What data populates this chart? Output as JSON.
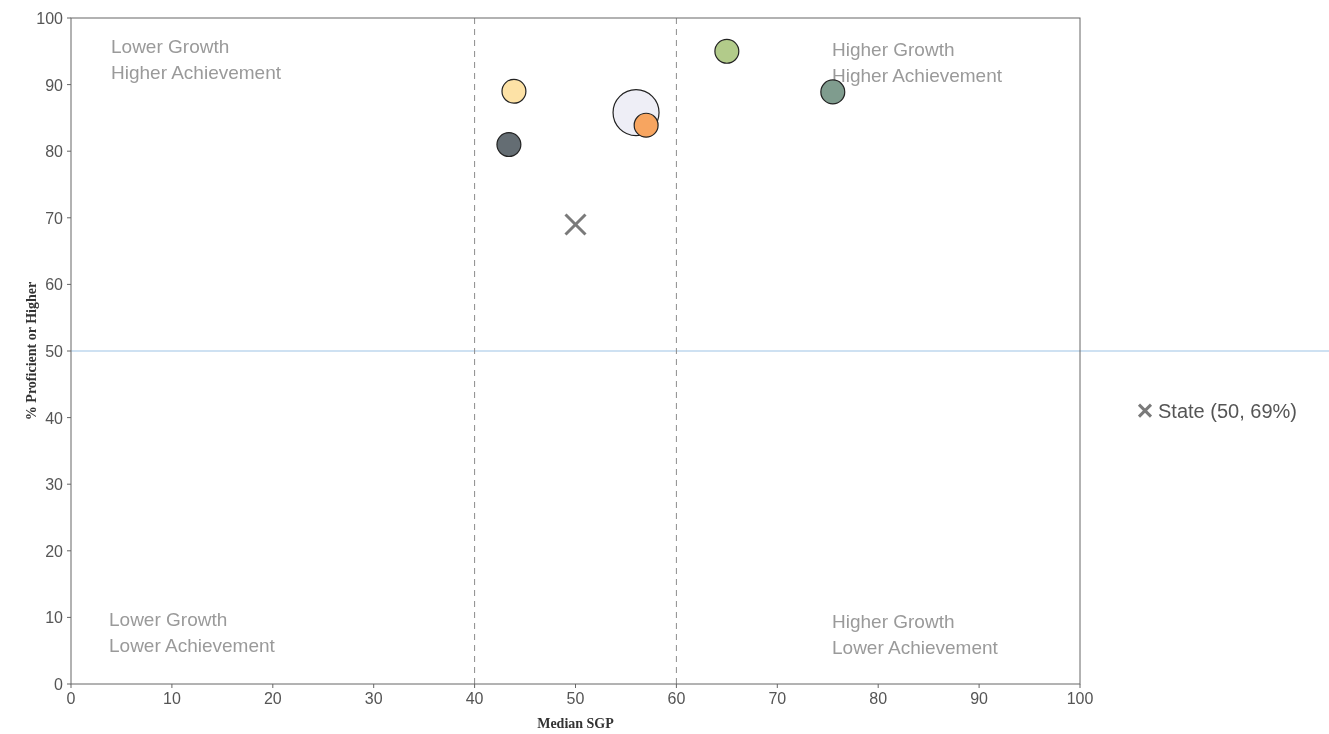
{
  "chart_data": {
    "type": "bubble",
    "xlabel": "Median SGP",
    "ylabel": "% Proficient or Higher",
    "xlim": [
      0,
      100
    ],
    "xticks": [
      0,
      10,
      20,
      30,
      40,
      50,
      60,
      70,
      80,
      90,
      100
    ],
    "ylim": [
      0,
      100
    ],
    "yticks": [
      0,
      10,
      20,
      30,
      40,
      50,
      60,
      70,
      80,
      90,
      100
    ],
    "grid": false,
    "legend": "right",
    "series": [
      {
        "x": [
          43.9,
          43.4,
          56.0,
          57.0,
          65.0,
          75.5
        ],
        "values": [
          89.0,
          81.0,
          85.8,
          83.9,
          95.0,
          88.9
        ],
        "sizes": [
          0.27,
          0.27,
          1,
          0.27,
          0.27,
          0.27
        ],
        "colors": [
          "#fde2a6",
          "#646d73",
          "#eeeef6",
          "#f7a560",
          "#b2cb8a",
          "#7f9c8e"
        ]
      },
      {
        "type": "scatter",
        "marker": "cross",
        "name": "State (50, 69%)",
        "color": "#7a7a7a",
        "x": [
          50
        ],
        "values": [
          69
        ]
      }
    ],
    "ref_lines": [
      {
        "axis": "y",
        "value": 50,
        "color": "#9dc3e6",
        "line_style": "solid"
      },
      {
        "axis": "x",
        "value": 40,
        "color": "#8c8c8c",
        "line_style": "dashed"
      },
      {
        "axis": "x",
        "value": 60,
        "color": "#8c8c8c",
        "line_style": "dashed"
      }
    ],
    "annotations": [
      "Lower Growth\nHigher Achievement",
      "Higher Growth\nHigher Achievement",
      "Lower Growth\nLower Achievement",
      "Higher Growth\nLower Achievement"
    ]
  }
}
